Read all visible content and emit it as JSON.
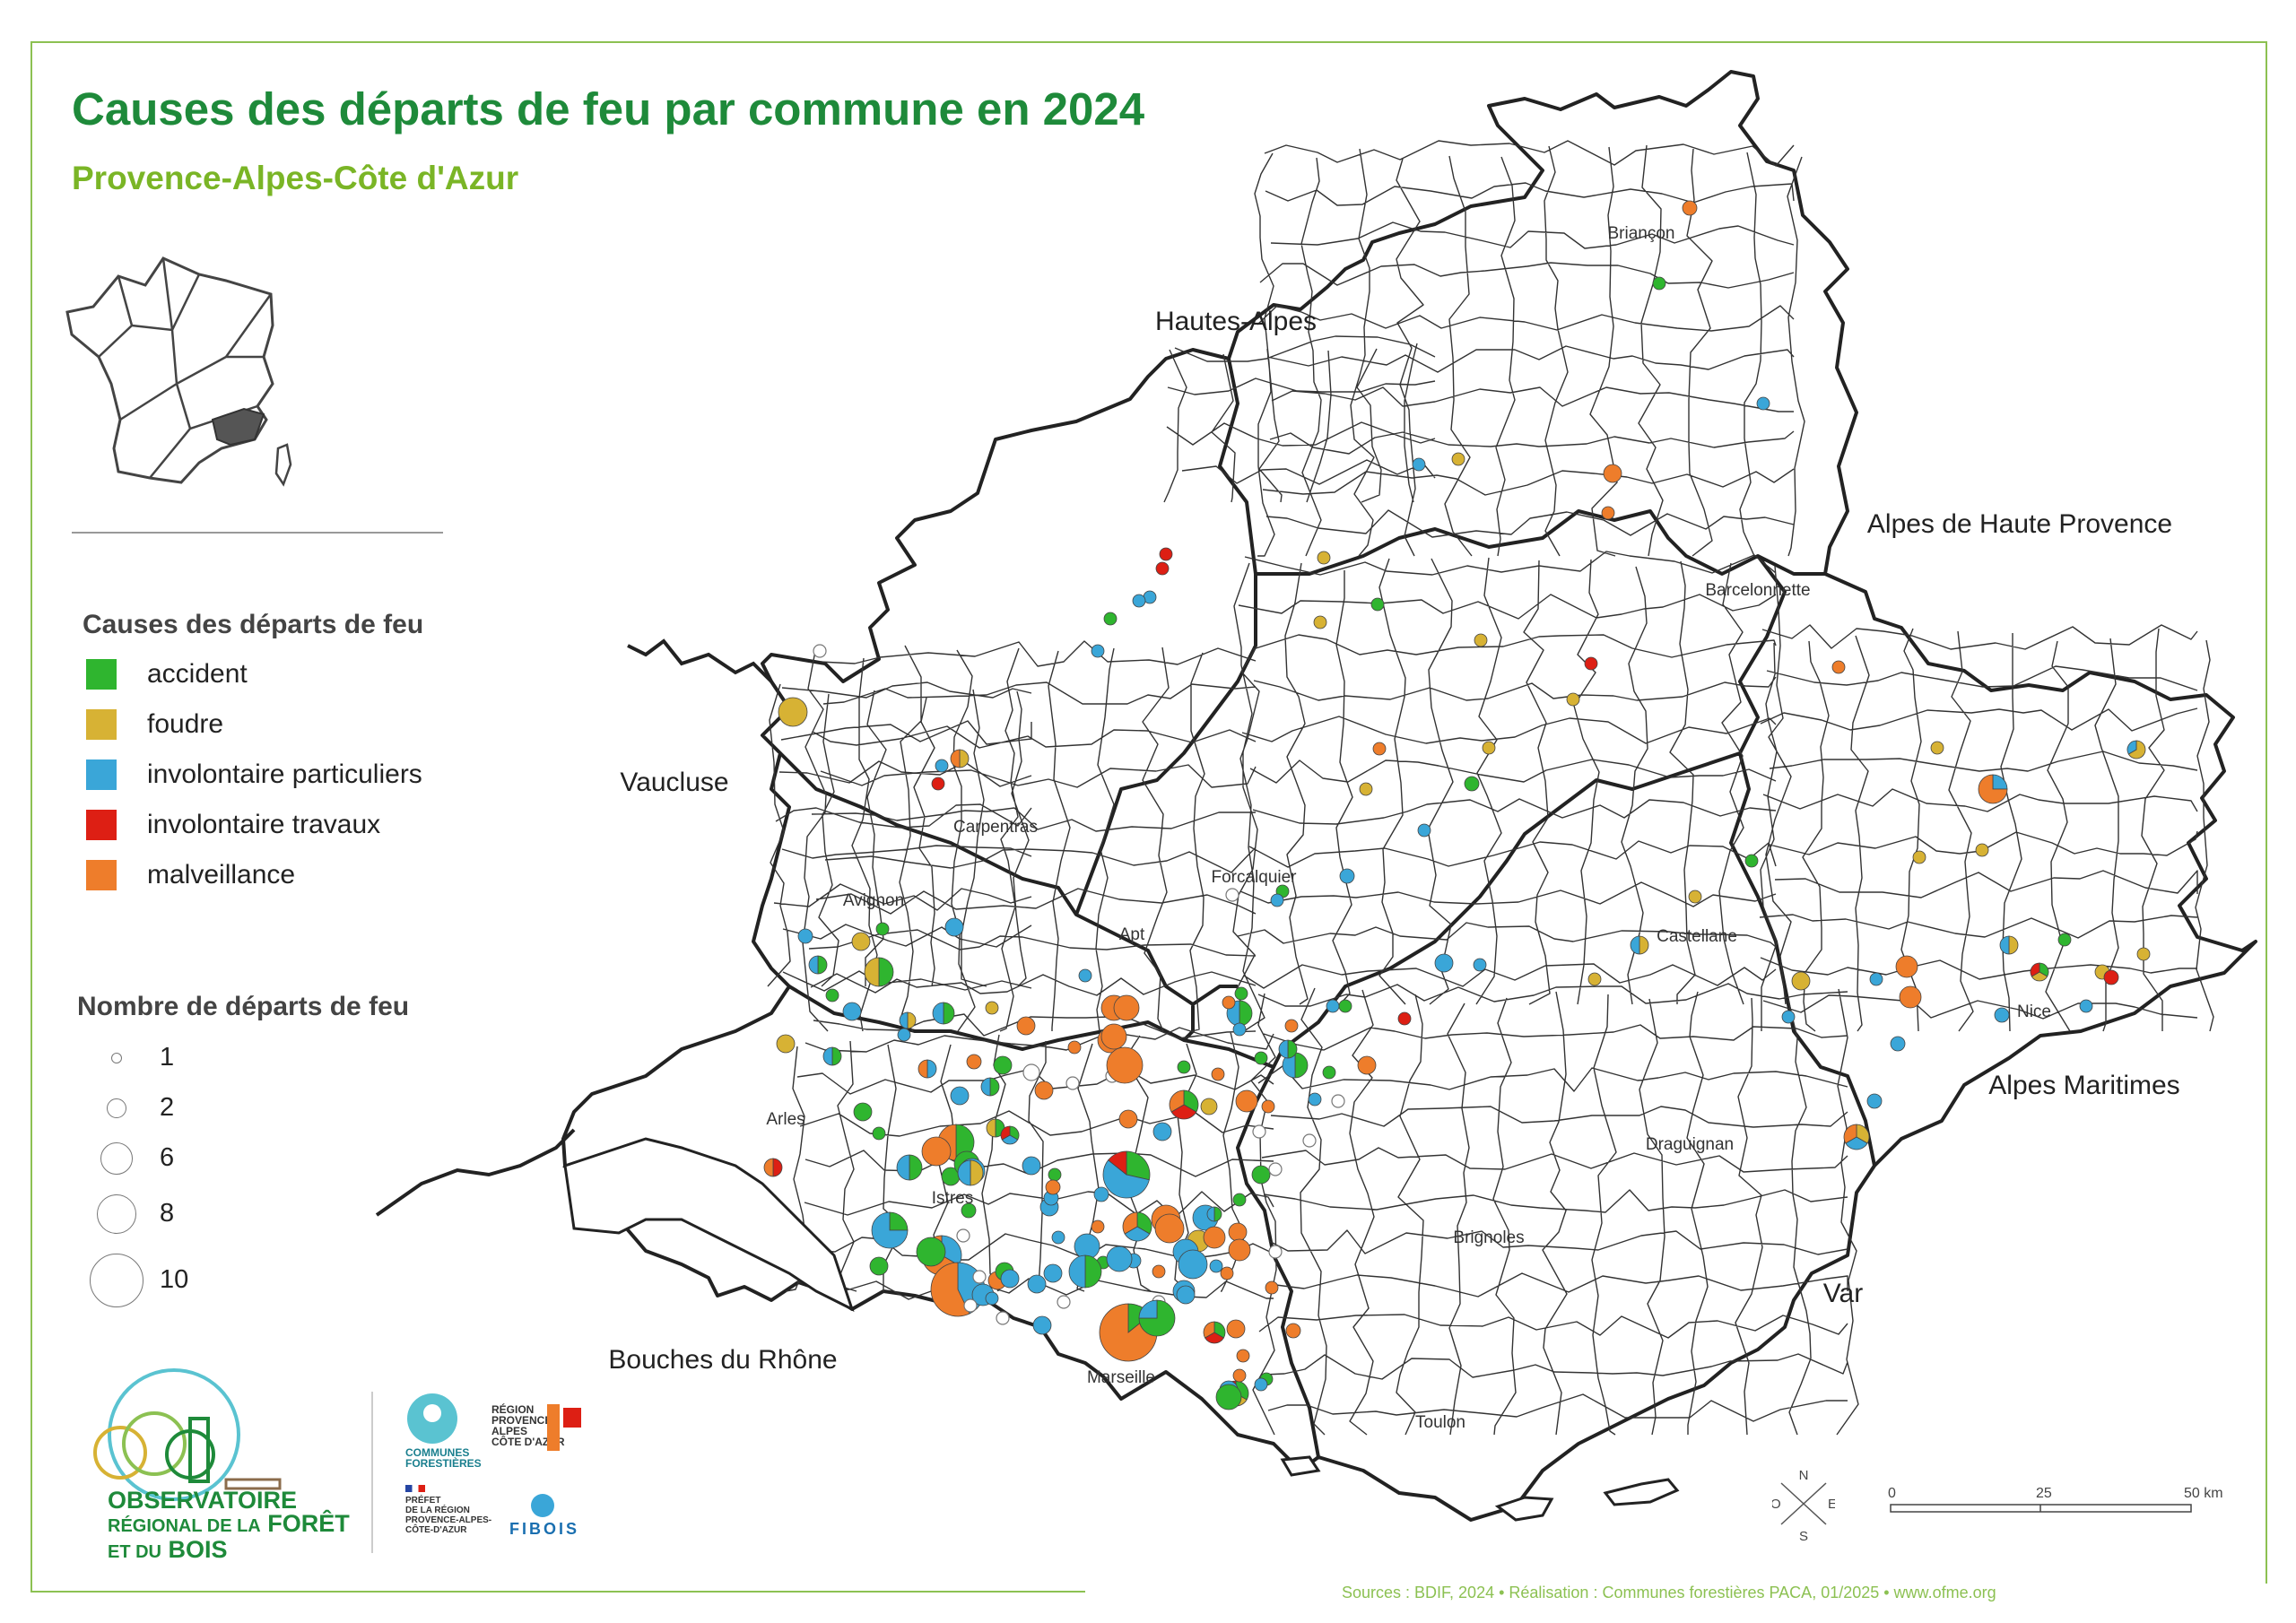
{
  "title": "Causes des départs de feu par commune en 2024",
  "subtitle": "Provence-Alpes-Côte d'Azur",
  "legend": {
    "causes_title": "Causes des départs de feu",
    "causes": [
      {
        "label": "accident",
        "color": "#2fb52f"
      },
      {
        "label": "foudre",
        "color": "#d7b234"
      },
      {
        "label": "involontaire particuliers",
        "color": "#3aa6d8"
      },
      {
        "label": "involontaire travaux",
        "color": "#dd1f14"
      },
      {
        "label": "malveillance",
        "color": "#ee7d2b"
      }
    ],
    "count_title": "Nombre de départs de feu",
    "counts": [
      "1",
      "2",
      "6",
      "8",
      "10"
    ]
  },
  "departments": [
    "Hautes-Alpes",
    "Alpes de Haute Provence",
    "Vaucluse",
    "Alpes Maritimes",
    "Bouches du Rhône",
    "Var"
  ],
  "cities": [
    "Briançon",
    "Barcelonnette",
    "Carpentras",
    "Forcalquier",
    "Avignon",
    "Apt",
    "Castellane",
    "Nice",
    "Arles",
    "Istres",
    "Draguignan",
    "Brignoles",
    "Marseille",
    "Toulon"
  ],
  "compass": {
    "n": "N",
    "s": "S",
    "e": "E",
    "o": "O"
  },
  "scale": {
    "labels": [
      "0",
      "25",
      "50 km"
    ]
  },
  "logo": {
    "line1": "OBSERVATOIRE",
    "line2": "RÉGIONAL DE LA",
    "line2b": "FORÊT",
    "line3": "ET DU",
    "line3b": "BOIS"
  },
  "partners": {
    "communes": "COMMUNES\nFORESTIÈRES",
    "region": "RÉGION\nPROVENCE\nALPES\nCÔTE D'AZUR",
    "prefet": "PRÉFET\nDE LA RÉGION\nPROVENCE-ALPES-\nCÔTE-D'AZUR",
    "fibois": "FIBOIS"
  },
  "sources": "Sources : BDIF, 2024  • Réalisation : Communes forestières PACA, 01/2025 • www.ofme.org"
}
